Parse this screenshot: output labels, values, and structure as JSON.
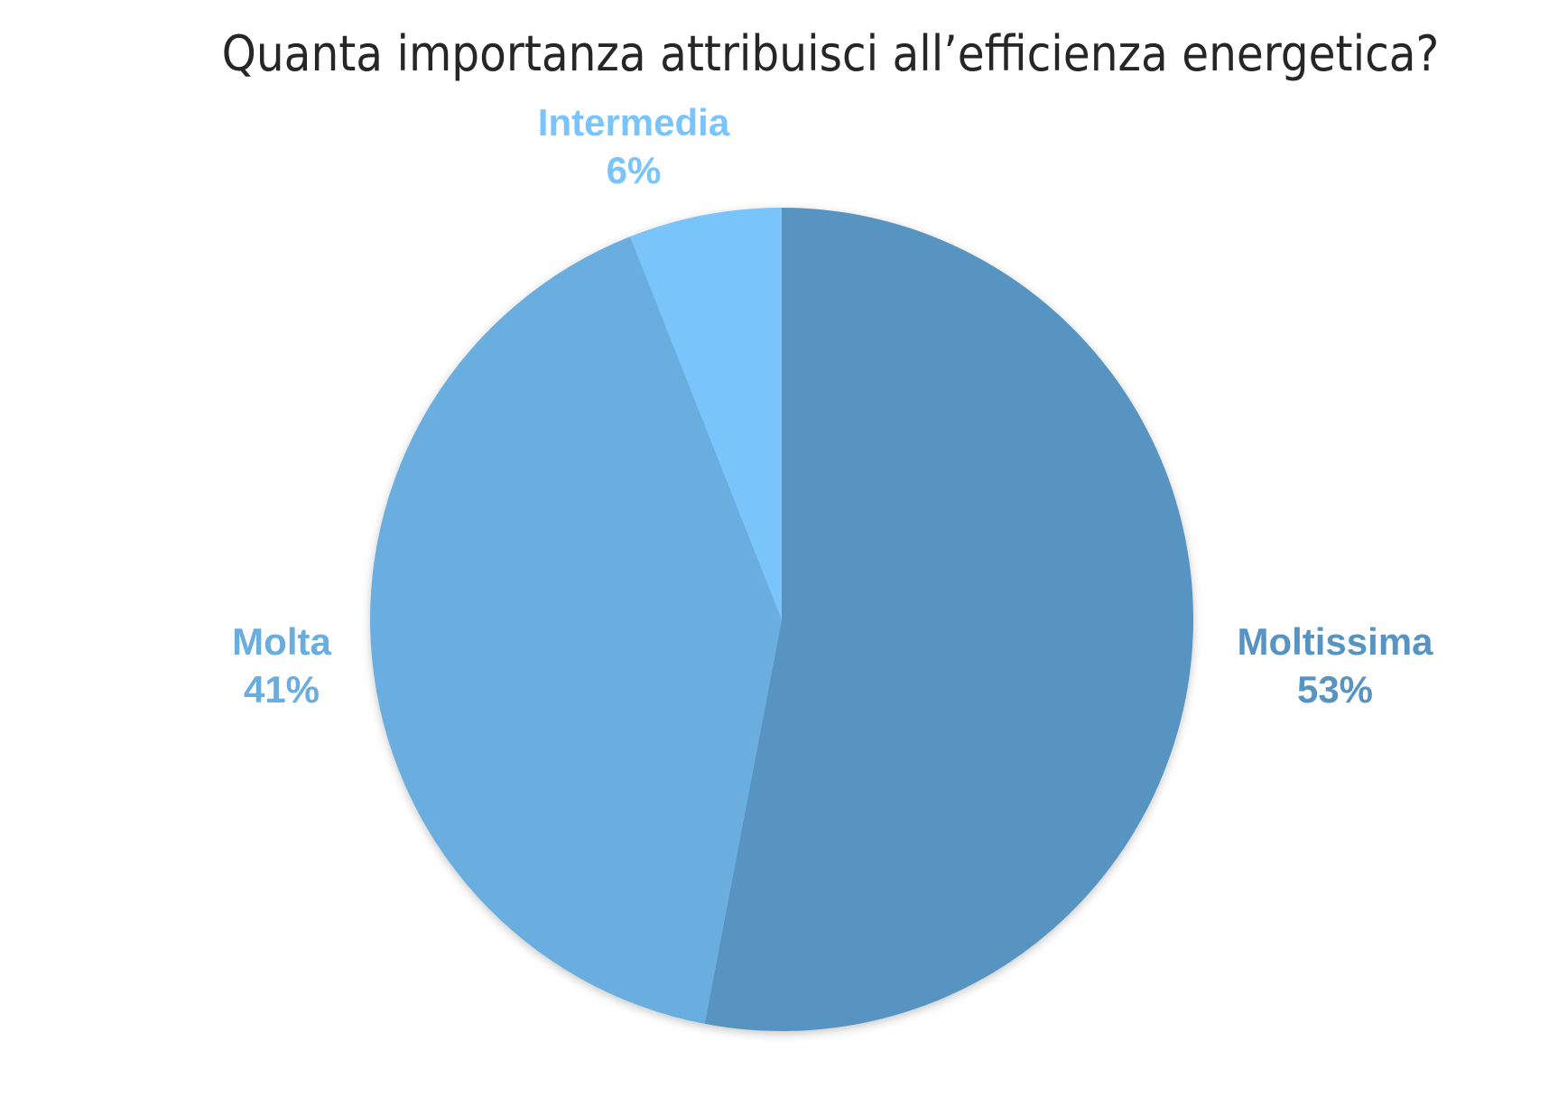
{
  "chart_data": {
    "type": "pie",
    "title": "Quanta importanza attribuisci all’efficienza energetica?",
    "slices": [
      {
        "label": "Moltissima",
        "percent_label": "53%",
        "value": 53,
        "color": "#5894C1"
      },
      {
        "label": "Molta",
        "percent_label": "41%",
        "value": 41,
        "color": "#6AAEDF"
      },
      {
        "label": "Intermedia",
        "percent_label": "6%",
        "value": 6,
        "color": "#78C4FB"
      }
    ],
    "start_angle": "12 o'clock",
    "direction": "clockwise",
    "legend": "none",
    "labels_placement": "outside"
  }
}
